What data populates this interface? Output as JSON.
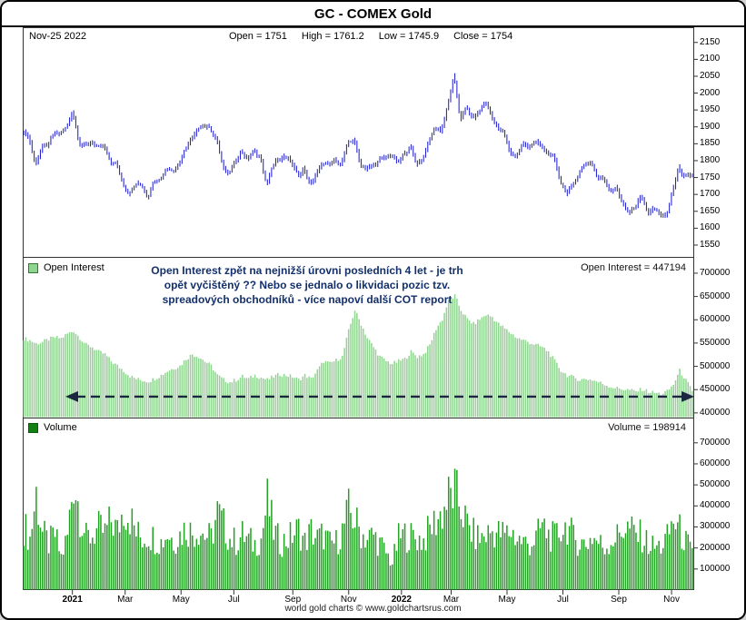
{
  "window": {
    "title": "GC - COMEX Gold"
  },
  "header": {
    "date": "Nov-25 2022",
    "open": "Open = 1751",
    "high": "High = 1761.2",
    "low": "Low = 1745.9",
    "close": "Close = 1754"
  },
  "panels": {
    "open_interest": {
      "legend": "Open Interest",
      "value_label": "Open Interest = 447194",
      "arrow_value": 435000,
      "annotation_lines": [
        "Open Interest zpět na nejnižší úrovni posledních 4 let - je trh",
        "opět vyčištěný ?? Nebo se jednalo o likvidaci pozic tzv.",
        "spreadových obchodníků - více napoví další COT report"
      ]
    },
    "volume": {
      "legend": "Volume",
      "value_label": "Volume = 198914"
    }
  },
  "footer": "world gold charts © www.goldchartsrus.com",
  "colors": {
    "price_bars": "#2222cc",
    "oi_bars": "#8fd48f",
    "oi_swatch_border": "#2f7a2f",
    "vol_bars": "#21a121",
    "vol_legend": "#128012",
    "vol_swatch_border": "#0a5a0a",
    "arrow": "#1b2740",
    "annotation": "#13306b"
  },
  "chart_data": [
    {
      "type": "ohlc-bar",
      "name": "GC COMEX Gold price",
      "ylabel": "Price (USD/oz)",
      "ylim": [
        1550,
        2150
      ],
      "y_ticks": [
        2150,
        2100,
        2050,
        2000,
        1950,
        1900,
        1850,
        1800,
        1750,
        1700,
        1650,
        1600,
        1550
      ],
      "x_start": "Nov 2020",
      "x_end": "Nov-25 2022",
      "sampling": "weekly",
      "last": {
        "date": "Nov-25 2022",
        "open": 1751,
        "high": 1761.2,
        "low": 1745.9,
        "close": 1754
      },
      "close": [
        1890,
        1868,
        1788,
        1838,
        1845,
        1878,
        1882,
        1898,
        1948,
        1855,
        1842,
        1856,
        1836,
        1842,
        1796,
        1790,
        1734,
        1702,
        1728,
        1732,
        1692,
        1744,
        1746,
        1778,
        1772,
        1792,
        1838,
        1868,
        1898,
        1904,
        1892,
        1862,
        1782,
        1762,
        1800,
        1826,
        1802,
        1830,
        1812,
        1726,
        1784,
        1806,
        1814,
        1796,
        1756,
        1774,
        1726,
        1760,
        1794,
        1784,
        1800,
        1790,
        1850,
        1864,
        1790,
        1776,
        1784,
        1800,
        1808,
        1818,
        1790,
        1820,
        1840,
        1792,
        1806,
        1858,
        1898,
        1890,
        1962,
        2048,
        1926,
        1954,
        1926,
        1944,
        1974,
        1934,
        1896,
        1880,
        1824,
        1814,
        1848,
        1844,
        1854,
        1840,
        1824,
        1806,
        1742,
        1706,
        1724,
        1764,
        1790,
        1798,
        1746,
        1750,
        1712,
        1716,
        1676,
        1644,
        1660,
        1700,
        1646,
        1656,
        1644,
        1632,
        1712,
        1776,
        1752,
        1754
      ],
      "x_ticks": [
        {
          "label": "2021",
          "pos": 7.5,
          "bold": true
        },
        {
          "label": "Mar",
          "pos": 16,
          "bold": false
        },
        {
          "label": "May",
          "pos": 25,
          "bold": false
        },
        {
          "label": "Jul",
          "pos": 33.5,
          "bold": false
        },
        {
          "label": "Sep",
          "pos": 43,
          "bold": false
        },
        {
          "label": "Nov",
          "pos": 52,
          "bold": false
        },
        {
          "label": "2022",
          "pos": 60.5,
          "bold": true
        },
        {
          "label": "Mar",
          "pos": 68.5,
          "bold": false
        },
        {
          "label": "May",
          "pos": 77.5,
          "bold": false
        },
        {
          "label": "Jul",
          "pos": 86.5,
          "bold": false
        },
        {
          "label": "Sep",
          "pos": 95.5,
          "bold": false
        },
        {
          "label": "Nov",
          "pos": 104,
          "bold": false
        }
      ]
    },
    {
      "type": "bar",
      "name": "Open Interest",
      "ylim": [
        400000,
        700000
      ],
      "y_ticks": [
        700000,
        650000,
        600000,
        550000,
        500000,
        450000,
        400000
      ],
      "last_value": 447194,
      "values": [
        560000,
        556000,
        549000,
        552000,
        558000,
        562000,
        560000,
        570000,
        576000,
        561000,
        546000,
        541000,
        531000,
        526000,
        511000,
        501000,
        491000,
        479000,
        473000,
        470000,
        468000,
        474000,
        481000,
        490000,
        496000,
        501000,
        516000,
        526000,
        521000,
        511000,
        501000,
        481000,
        471000,
        466000,
        471000,
        478000,
        473000,
        481000,
        476000,
        471000,
        478000,
        483000,
        481000,
        478000,
        471000,
        481000,
        473000,
        491000,
        511000,
        506000,
        513000,
        521000,
        576000,
        621000,
        591000,
        561000,
        541000,
        521000,
        511000,
        506000,
        511000,
        516000,
        531000,
        521000,
        526000,
        546000,
        581000,
        601000,
        641000,
        651000,
        621000,
        601000,
        591000,
        601000,
        611000,
        606000,
        591000,
        581000,
        571000,
        561000,
        556000,
        551000,
        546000,
        541000,
        531000,
        511000,
        491000,
        481000,
        476000,
        471000,
        473000,
        471000,
        466000,
        461000,
        456000,
        453000,
        451000,
        449000,
        446000,
        451000,
        446000,
        443000,
        441000,
        446000,
        461000,
        491000,
        470000,
        447194
      ]
    },
    {
      "type": "bar",
      "name": "Volume",
      "ylim": [
        0,
        700000
      ],
      "y_ticks": [
        700000,
        600000,
        500000,
        400000,
        300000,
        200000,
        100000
      ],
      "last_value": 198914,
      "values": [
        350000,
        280000,
        520000,
        310000,
        250000,
        300000,
        180000,
        290000,
        610000,
        420000,
        280000,
        300000,
        330000,
        310000,
        380000,
        320000,
        450000,
        400000,
        310000,
        280000,
        300000,
        280000,
        260000,
        310000,
        270000,
        300000,
        340000,
        310000,
        330000,
        300000,
        280000,
        420000,
        350000,
        280000,
        260000,
        300000,
        270000,
        250000,
        280000,
        480000,
        320000,
        260000,
        270000,
        300000,
        330000,
        260000,
        320000,
        280000,
        300000,
        250000,
        260000,
        320000,
        430000,
        380000,
        310000,
        280000,
        300000,
        250000,
        200000,
        150000,
        280000,
        300000,
        290000,
        280000,
        270000,
        330000,
        380000,
        420000,
        500000,
        530000,
        450000,
        350000,
        300000,
        280000,
        300000,
        320000,
        310000,
        300000,
        320000,
        280000,
        260000,
        250000,
        280000,
        350000,
        300000,
        280000,
        330000,
        350000,
        280000,
        260000,
        250000,
        290000,
        260000,
        230000,
        270000,
        290000,
        340000,
        330000,
        300000,
        290000,
        250000,
        230000,
        240000,
        280000,
        380000,
        320000,
        260000,
        198914
      ]
    }
  ]
}
